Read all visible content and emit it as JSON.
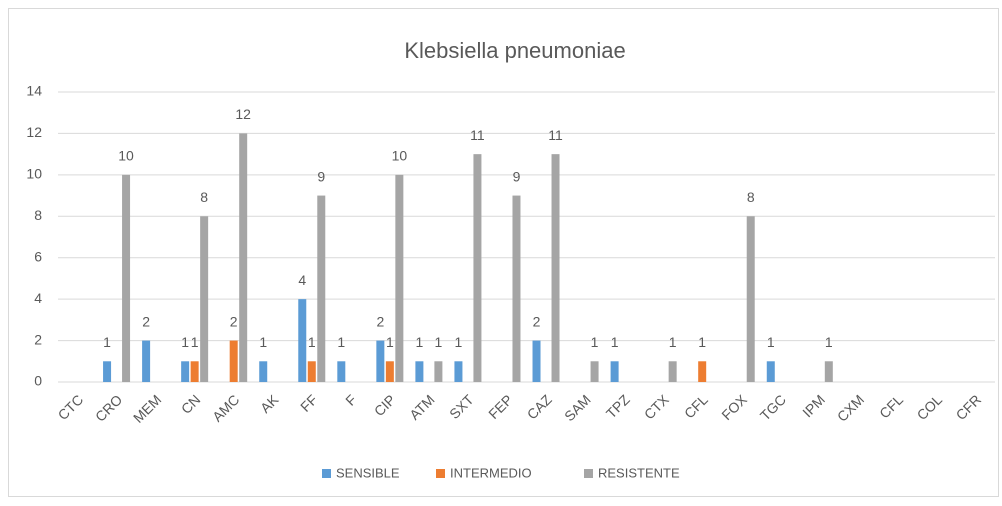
{
  "chart_data": {
    "type": "bar",
    "title": "Klebsiella pneumoniae",
    "categories": [
      "CTC",
      "CRO",
      "MEM",
      "CN",
      "AMC",
      "AK",
      "FF",
      "F",
      "CIP",
      "ATM",
      "SXT",
      "FEP",
      "CAZ",
      "SAM",
      "TPZ",
      "CTX",
      "CFL",
      "FOX",
      "TGC",
      "IPM",
      "CXM",
      "CFL",
      "COL",
      "CFR"
    ],
    "series": [
      {
        "name": "SENSIBLE",
        "color": "#5b9bd5",
        "values": [
          null,
          1,
          2,
          1,
          null,
          1,
          4,
          1,
          2,
          1,
          1,
          null,
          2,
          null,
          1,
          null,
          null,
          null,
          1,
          null,
          null,
          null,
          null,
          null
        ]
      },
      {
        "name": "INTERMEDIO",
        "color": "#ed7d31",
        "values": [
          null,
          null,
          null,
          1,
          2,
          null,
          1,
          null,
          1,
          null,
          null,
          null,
          null,
          null,
          null,
          null,
          1,
          null,
          null,
          null,
          null,
          null,
          null,
          null
        ]
      },
      {
        "name": "RESISTENTE",
        "color": "#a5a5a5",
        "values": [
          null,
          10,
          null,
          8,
          12,
          null,
          9,
          null,
          10,
          1,
          11,
          9,
          11,
          1,
          null,
          1,
          null,
          8,
          null,
          1,
          null,
          null,
          null,
          null
        ]
      }
    ],
    "ylim": [
      0,
      14
    ],
    "yticks": [
      0,
      2,
      4,
      6,
      8,
      10,
      12,
      14
    ],
    "grid": true,
    "legend": "bottom"
  }
}
